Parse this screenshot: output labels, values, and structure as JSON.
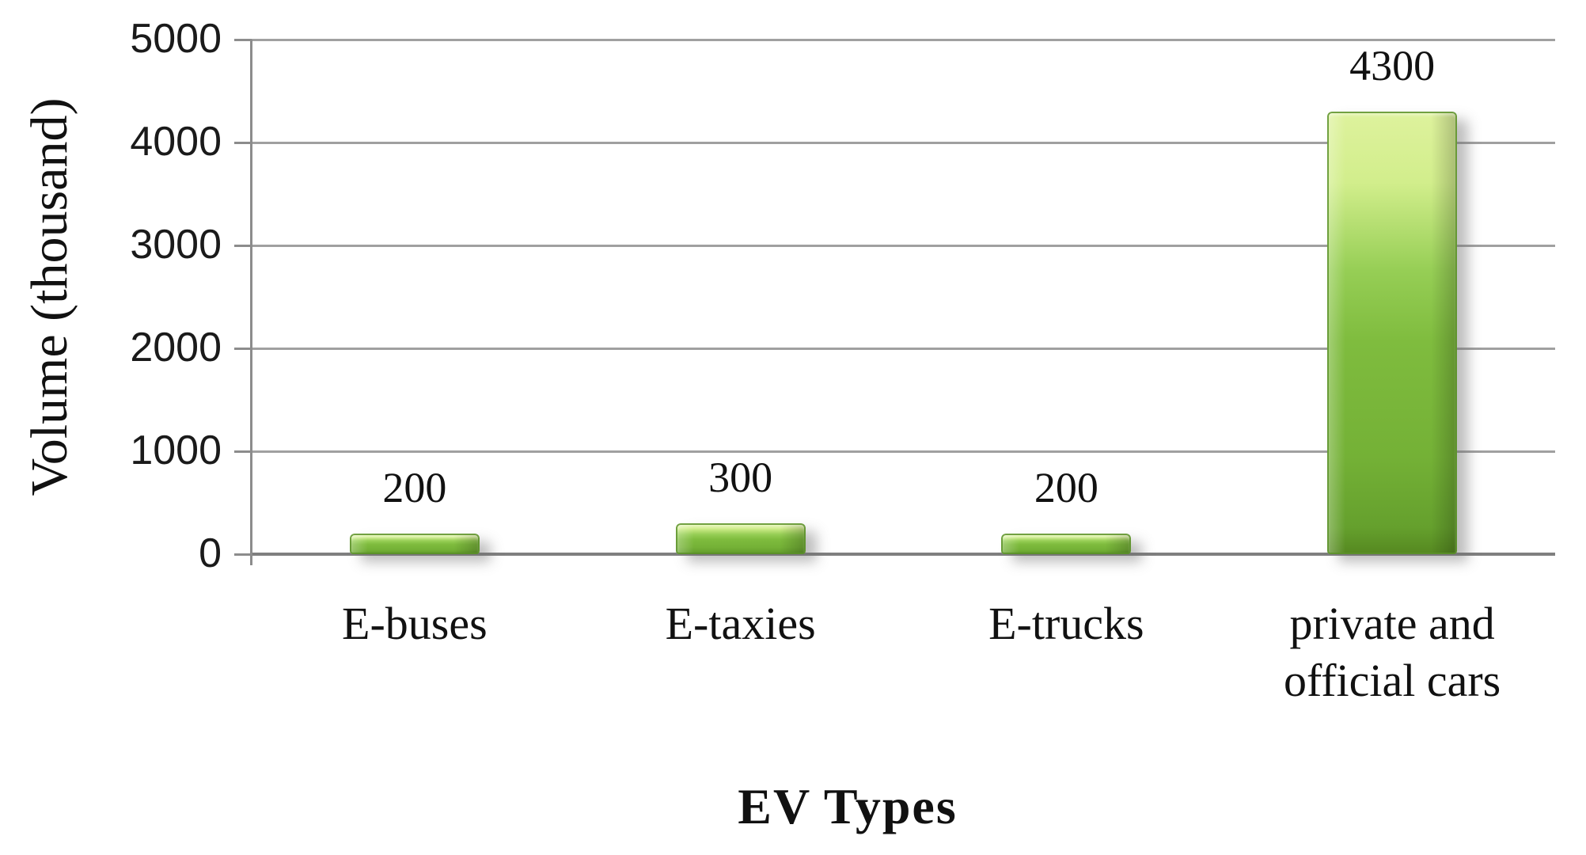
{
  "chart_data": {
    "type": "bar",
    "title": "",
    "categories": [
      "E-buses",
      "E-taxies",
      "E-trucks",
      "private and\nofficial cars"
    ],
    "values": [
      200,
      300,
      200,
      4300
    ],
    "data_labels": [
      "200",
      "300",
      "200",
      "4300"
    ],
    "xlabel": "EV Types",
    "ylabel": "Volume (thousand)",
    "ylim": [
      0,
      5000
    ],
    "y_ticks": [
      0,
      1000,
      2000,
      3000,
      4000,
      5000
    ],
    "grid": "horizontal-only",
    "legend": "none",
    "colors": {
      "bar_fill": "#7FBC3E",
      "bar_highlight": "#DEF29D",
      "bar_edge": "#5C9229",
      "gridline": "#A0A0A0",
      "axis_line": "#8C8C8C",
      "text": "#111111"
    }
  }
}
